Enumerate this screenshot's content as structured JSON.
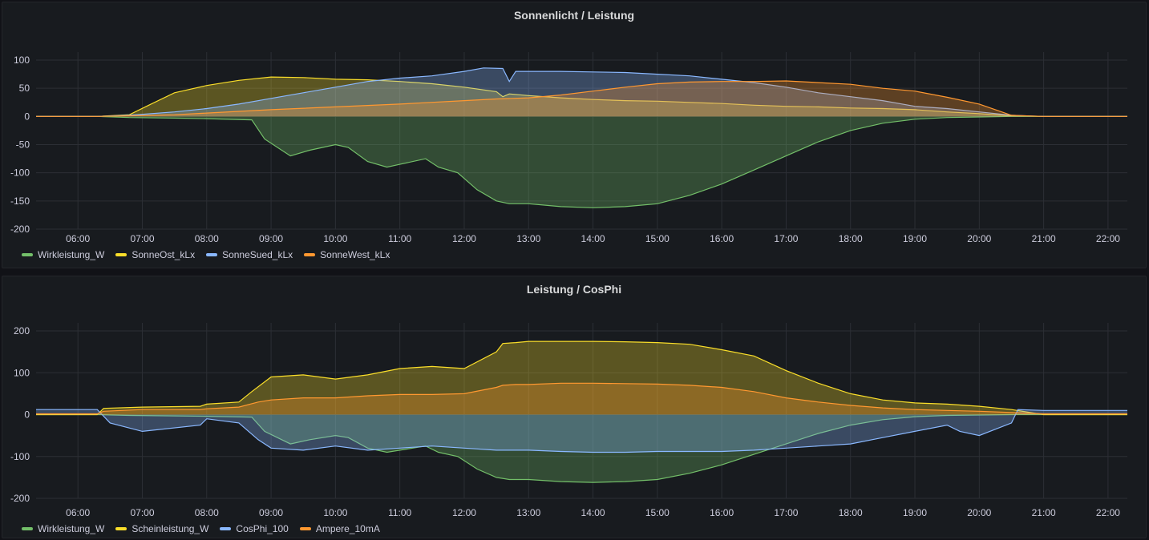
{
  "chart_data": [
    {
      "type": "area",
      "title": "Sonnenlicht / Leistung",
      "x_ticks": [
        "06:00",
        "07:00",
        "08:00",
        "09:00",
        "10:00",
        "11:00",
        "12:00",
        "13:00",
        "14:00",
        "15:00",
        "16:00",
        "17:00",
        "18:00",
        "19:00",
        "20:00",
        "21:00",
        "22:00"
      ],
      "ylim": [
        -200,
        100
      ],
      "y_ticks": [
        100,
        50,
        0,
        -50,
        -100,
        -150,
        -200
      ],
      "x_range_hours": [
        5.35,
        22.3
      ],
      "grid": true,
      "legend_position": "bottom-left",
      "series": [
        {
          "name": "Wirkleistung_W",
          "color": "#73bf69",
          "x": [
            5.35,
            6.3,
            6.8,
            7.5,
            8.0,
            8.7,
            8.9,
            9.3,
            9.6,
            10.0,
            10.2,
            10.5,
            10.8,
            11.0,
            11.4,
            11.6,
            11.9,
            12.2,
            12.5,
            12.7,
            13.0,
            13.5,
            14.0,
            14.5,
            15.0,
            15.5,
            16.0,
            16.5,
            17.0,
            17.5,
            18.0,
            18.5,
            19.0,
            19.5,
            20.0,
            20.5,
            21.0,
            22.3
          ],
          "y": [
            0,
            0,
            -2,
            -3,
            -4,
            -6,
            -40,
            -70,
            -60,
            -50,
            -55,
            -80,
            -90,
            -85,
            -75,
            -90,
            -100,
            -130,
            -150,
            -155,
            -155,
            -160,
            -162,
            -160,
            -155,
            -140,
            -120,
            -95,
            -70,
            -45,
            -25,
            -12,
            -5,
            -2,
            -1,
            0,
            0,
            0
          ]
        },
        {
          "name": "SonneOst_kLx",
          "color": "#fade2a",
          "x": [
            5.35,
            6.3,
            6.8,
            7.1,
            7.5,
            8.0,
            8.5,
            9.0,
            9.5,
            10.0,
            10.5,
            11.0,
            11.5,
            12.0,
            12.5,
            12.6,
            12.7,
            13.0,
            13.5,
            14.0,
            14.5,
            15.0,
            15.5,
            16.0,
            16.5,
            17.0,
            17.5,
            18.0,
            18.5,
            19.0,
            19.5,
            20.0,
            20.5,
            21.0,
            22.3
          ],
          "y": [
            0,
            0,
            3,
            20,
            42,
            55,
            64,
            70,
            69,
            66,
            65,
            62,
            58,
            52,
            44,
            35,
            40,
            37,
            33,
            30,
            28,
            27,
            25,
            23,
            20,
            18,
            17,
            15,
            14,
            12,
            8,
            5,
            1,
            0,
            0
          ]
        },
        {
          "name": "SonneSued_kLx",
          "color": "#8ab8ff",
          "x": [
            5.35,
            6.3,
            6.8,
            7.5,
            8.0,
            8.5,
            9.0,
            9.5,
            10.0,
            10.5,
            11.0,
            11.5,
            12.0,
            12.3,
            12.6,
            12.7,
            12.8,
            13.0,
            13.5,
            14.0,
            14.5,
            15.0,
            15.5,
            16.0,
            16.5,
            17.0,
            17.5,
            18.0,
            18.5,
            19.0,
            19.5,
            20.0,
            20.5,
            21.0,
            22.3
          ],
          "y": [
            0,
            0,
            2,
            8,
            14,
            22,
            32,
            42,
            52,
            62,
            68,
            72,
            80,
            86,
            85,
            62,
            80,
            80,
            80,
            79,
            78,
            75,
            72,
            66,
            60,
            52,
            42,
            35,
            28,
            18,
            14,
            8,
            2,
            0,
            0
          ]
        },
        {
          "name": "SonneWest_kLx",
          "color": "#ff9830",
          "x": [
            5.35,
            6.3,
            6.8,
            7.5,
            8.0,
            9.0,
            10.0,
            11.0,
            12.0,
            12.5,
            13.0,
            13.5,
            14.0,
            14.5,
            15.0,
            15.5,
            16.0,
            16.5,
            17.0,
            17.5,
            18.0,
            18.5,
            19.0,
            19.5,
            20.0,
            20.3,
            20.5,
            21.0,
            22.3
          ],
          "y": [
            0,
            0,
            1,
            3,
            6,
            12,
            17,
            22,
            28,
            31,
            33,
            38,
            45,
            52,
            58,
            61,
            62,
            62,
            63,
            60,
            57,
            50,
            45,
            34,
            22,
            10,
            2,
            0,
            0
          ]
        }
      ]
    },
    {
      "type": "area",
      "title": "Leistung / CosPhi",
      "x_ticks": [
        "06:00",
        "07:00",
        "08:00",
        "09:00",
        "10:00",
        "11:00",
        "12:00",
        "13:00",
        "14:00",
        "15:00",
        "16:00",
        "17:00",
        "18:00",
        "19:00",
        "20:00",
        "21:00",
        "22:00"
      ],
      "ylim": [
        -200,
        200
      ],
      "y_ticks": [
        200,
        100,
        0,
        -100,
        -200
      ],
      "x_range_hours": [
        5.35,
        22.3
      ],
      "grid": true,
      "legend_position": "bottom-left",
      "series": [
        {
          "name": "Wirkleistung_W",
          "color": "#73bf69",
          "x": [
            5.35,
            6.3,
            6.8,
            7.5,
            8.0,
            8.7,
            8.9,
            9.3,
            9.6,
            10.0,
            10.2,
            10.5,
            10.8,
            11.0,
            11.4,
            11.6,
            11.9,
            12.2,
            12.5,
            12.7,
            13.0,
            13.5,
            14.0,
            14.5,
            15.0,
            15.5,
            16.0,
            16.5,
            17.0,
            17.5,
            18.0,
            18.5,
            19.0,
            19.5,
            20.0,
            20.5,
            21.0,
            22.3
          ],
          "y": [
            0,
            0,
            -2,
            -3,
            -4,
            -6,
            -40,
            -70,
            -60,
            -50,
            -55,
            -80,
            -90,
            -85,
            -75,
            -90,
            -100,
            -130,
            -150,
            -155,
            -155,
            -160,
            -162,
            -160,
            -155,
            -140,
            -120,
            -95,
            -70,
            -45,
            -25,
            -12,
            -5,
            -2,
            -1,
            0,
            0,
            0
          ]
        },
        {
          "name": "Scheinleistung_W",
          "color": "#fade2a",
          "x": [
            5.35,
            6.3,
            6.4,
            7.0,
            7.9,
            8.0,
            8.5,
            8.7,
            9.0,
            9.5,
            10.0,
            10.5,
            11.0,
            11.5,
            12.0,
            12.5,
            12.6,
            12.8,
            13.0,
            13.5,
            14.0,
            14.5,
            15.0,
            15.5,
            16.0,
            16.5,
            17.0,
            17.5,
            18.0,
            18.5,
            19.0,
            19.5,
            20.0,
            20.5,
            21.0,
            22.3
          ],
          "y": [
            0,
            0,
            15,
            18,
            20,
            25,
            30,
            55,
            90,
            95,
            85,
            95,
            110,
            115,
            110,
            150,
            170,
            172,
            175,
            175,
            175,
            174,
            172,
            168,
            155,
            140,
            105,
            75,
            50,
            35,
            28,
            25,
            20,
            12,
            0,
            0
          ]
        },
        {
          "name": "CosPhi_100",
          "color": "#8ab8ff",
          "x": [
            5.35,
            6.3,
            6.5,
            7.0,
            7.9,
            8.0,
            8.5,
            8.8,
            9.0,
            9.5,
            10.0,
            10.5,
            11.0,
            11.5,
            12.0,
            12.5,
            13.0,
            13.5,
            14.0,
            14.5,
            15.0,
            15.5,
            16.0,
            16.5,
            17.0,
            17.5,
            18.0,
            18.5,
            19.0,
            19.5,
            19.7,
            20.0,
            20.5,
            20.6,
            21.0,
            22.3
          ],
          "y": [
            12,
            12,
            -20,
            -40,
            -25,
            -10,
            -20,
            -60,
            -80,
            -85,
            -75,
            -85,
            -80,
            -75,
            -80,
            -85,
            -85,
            -88,
            -90,
            -90,
            -88,
            -88,
            -88,
            -85,
            -80,
            -75,
            -70,
            -55,
            -40,
            -25,
            -40,
            -50,
            -20,
            12,
            10,
            10
          ]
        },
        {
          "name": "Ampere_10mA",
          "color": "#ff9830",
          "x": [
            5.35,
            6.3,
            6.4,
            7.0,
            7.9,
            8.0,
            8.5,
            8.8,
            9.0,
            9.5,
            10.0,
            10.5,
            11.0,
            11.5,
            12.0,
            12.5,
            12.6,
            12.8,
            13.0,
            13.5,
            14.0,
            14.5,
            15.0,
            15.5,
            16.0,
            16.5,
            17.0,
            17.5,
            18.0,
            18.5,
            19.0,
            19.5,
            20.0,
            20.5,
            21.0,
            22.3
          ],
          "y": [
            2,
            2,
            8,
            12,
            12,
            14,
            18,
            30,
            35,
            40,
            40,
            45,
            48,
            48,
            50,
            65,
            70,
            72,
            72,
            75,
            75,
            74,
            73,
            70,
            65,
            55,
            40,
            30,
            22,
            16,
            12,
            10,
            8,
            5,
            2,
            2
          ]
        }
      ]
    }
  ]
}
